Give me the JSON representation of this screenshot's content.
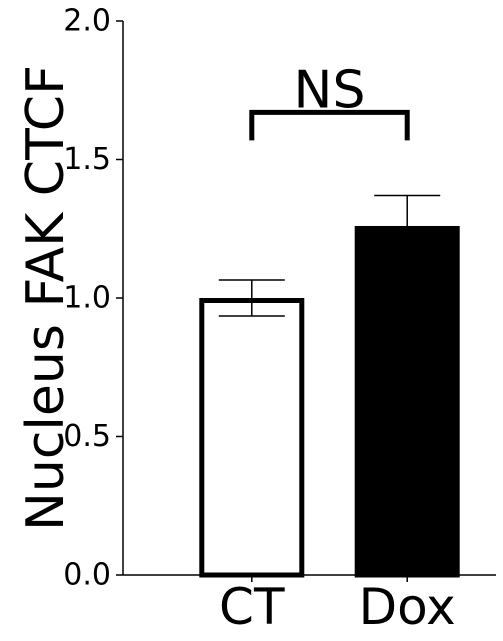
{
  "chart_data": {
    "type": "bar",
    "categories": [
      "CT",
      "Dox"
    ],
    "values": [
      1.0,
      1.26
    ],
    "errors": [
      0.065,
      0.11
    ],
    "bar_fill": [
      "#ffffff",
      "#000000"
    ],
    "bar_stroke": "#000000",
    "ylabel": "Nucleus FAK CTCF",
    "ylim": [
      0,
      2.0
    ],
    "yticks": [
      "0.0",
      "0.5",
      "1.0",
      "1.5",
      "2.0"
    ],
    "ytick_values": [
      0,
      0.5,
      1.0,
      1.5,
      2.0
    ],
    "grid": false,
    "annotation": {
      "text": "NS",
      "between": [
        "CT",
        "Dox"
      ],
      "bracket_y": 1.67
    }
  }
}
